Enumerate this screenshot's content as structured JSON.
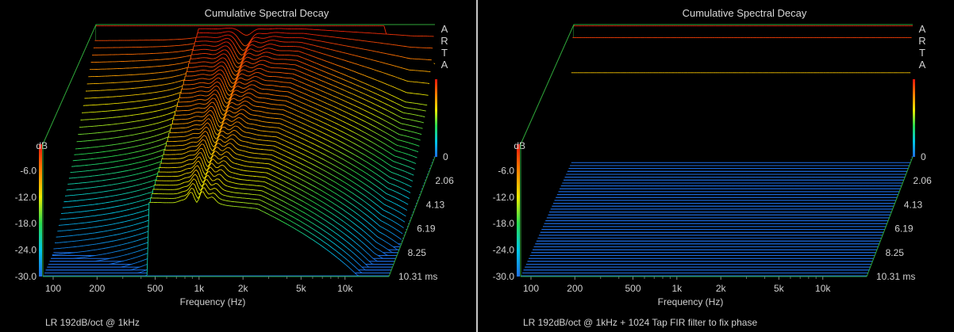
{
  "chart_data": [
    {
      "type": "waterfall",
      "title": "Cumulative Spectral Decay",
      "brand": "ARTA",
      "xlabel": "Frequency (Hz)",
      "zunit": "dB",
      "x_ticks": [
        "100",
        "200",
        "500",
        "1k",
        "2k",
        "5k",
        "10k"
      ],
      "x_tick_values": [
        100,
        200,
        500,
        1000,
        2000,
        5000,
        10000
      ],
      "xlim": [
        85,
        20000
      ],
      "z_ticks": [
        "-6.0",
        "-12.0",
        "-18.0",
        "-24.0",
        "-30.0"
      ],
      "zlim": [
        -30,
        0
      ],
      "t_ticks": [
        "0",
        "2.06",
        "4.13",
        "6.19",
        "8.25",
        "10.31 ms"
      ],
      "t_tick_values": [
        0,
        2.06,
        4.13,
        6.19,
        8.25,
        10.31
      ],
      "tlim": [
        0,
        10.31
      ],
      "slices": 42,
      "slice_step_ms": 0.25,
      "crossover_hz": 1000,
      "caption": "LR 192dB/oct @ 1kHz"
    },
    {
      "type": "waterfall",
      "title": "Cumulative Spectral Decay",
      "brand": "ARTA",
      "xlabel": "Frequency (Hz)",
      "zunit": "dB",
      "x_ticks": [
        "100",
        "200",
        "500",
        "1k",
        "2k",
        "5k",
        "10k"
      ],
      "x_tick_values": [
        100,
        200,
        500,
        1000,
        2000,
        5000,
        10000
      ],
      "xlim": [
        85,
        20000
      ],
      "z_ticks": [
        "-6.0",
        "-12.0",
        "-18.0",
        "-24.0",
        "-30.0"
      ],
      "zlim": [
        -30,
        0
      ],
      "t_ticks": [
        "0",
        "2.06",
        "4.13",
        "6.19",
        "8.25",
        "10.31 ms"
      ],
      "t_tick_values": [
        0,
        2.06,
        4.13,
        6.19,
        8.25,
        10.31
      ],
      "tlim": [
        0,
        10.31
      ],
      "slices": 42,
      "slice_step_ms": 0.25,
      "crossover_hz": 1000,
      "caption": "LR 192dB/oct @ 1kHz + 1024 Tap FIR filter to fix phase"
    }
  ]
}
